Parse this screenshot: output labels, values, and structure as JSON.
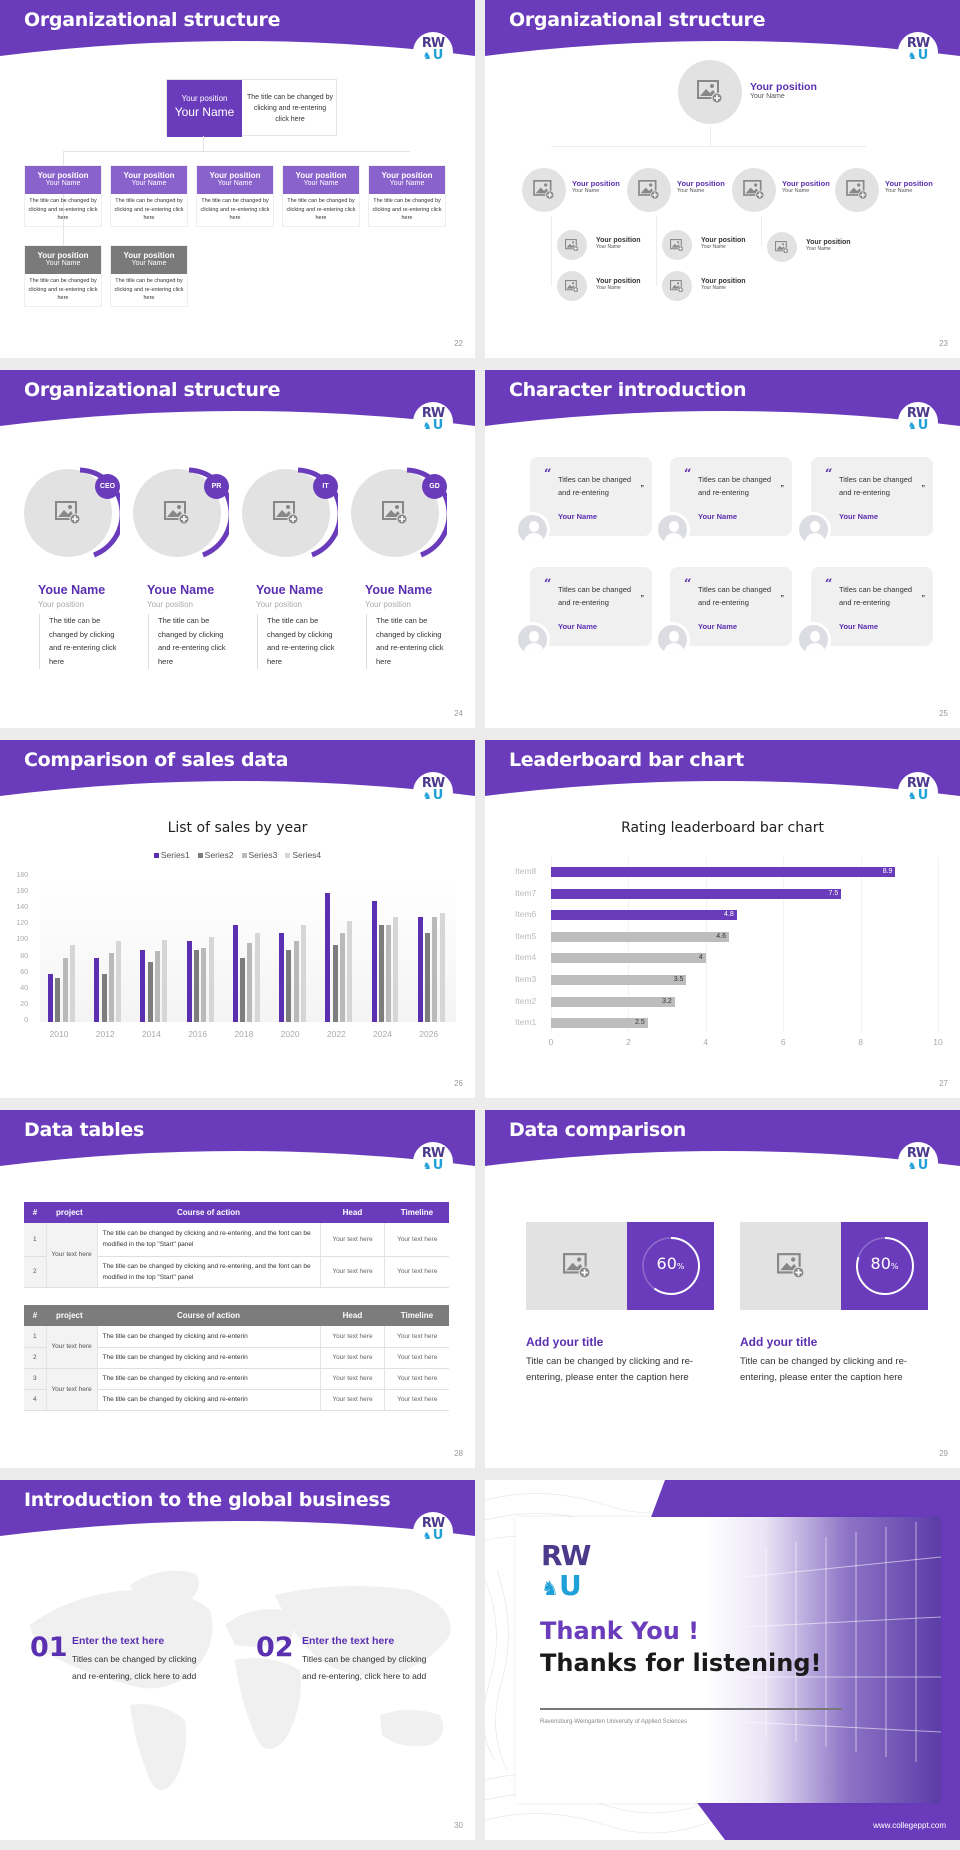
{
  "theme": {
    "accent": "#6a3cbc",
    "accent_light": "#8a62cc",
    "gray_header": "#7a7a7a",
    "placeholder": "#e3e2e2",
    "logo_dark": "#4b3a8c",
    "logo_blue": "#1fa0d8"
  },
  "logo": {
    "line1": "RW",
    "line2": "U",
    "lion": "♞"
  },
  "slides": {
    "s22": {
      "title": "Organizational structure",
      "page": "22",
      "top": {
        "position": "Your position",
        "name": "Your Name",
        "desc": "The title can be changed by clicking and re-entering click here"
      },
      "nodes": [
        {
          "position": "Your position",
          "name": "Your Name",
          "desc": "The title can be changed by clicking and re-entering click here",
          "color": "purple"
        },
        {
          "position": "Your position",
          "name": "Your Name",
          "desc": "The title can be changed by clicking and re-entering click here",
          "color": "purple"
        },
        {
          "position": "Your position",
          "name": "Your Name",
          "desc": "The title can be changed by clicking and re-entering click here",
          "color": "purple"
        },
        {
          "position": "Your position",
          "name": "Your Name",
          "desc": "The title can be changed by clicking and re-entering click here",
          "color": "purple"
        },
        {
          "position": "Your position",
          "name": "Your Name",
          "desc": "The title can be changed by clicking and re-entering click here",
          "color": "purple"
        },
        {
          "position": "Your position",
          "name": "Your Name",
          "desc": "The title can be changed by clicking and re-entering click here",
          "color": "gray"
        },
        {
          "position": "Your position",
          "name": "Your Name",
          "desc": "The title can be changed by clicking and re-entering click here",
          "color": "gray"
        }
      ]
    },
    "s23": {
      "title": "Organizational structure",
      "page": "23",
      "top": {
        "position": "Your position",
        "name": "Your Name"
      },
      "level1": [
        {
          "position": "Your position",
          "name": "Your Name"
        },
        {
          "position": "Your position",
          "name": "Your Name"
        },
        {
          "position": "Your position",
          "name": "Your Name"
        },
        {
          "position": "Your position",
          "name": "Your Name"
        }
      ],
      "level2": [
        {
          "position": "Your position",
          "name": "Your Name"
        },
        {
          "position": "Your position",
          "name": "Your Name"
        },
        {
          "position": "Your position",
          "name": "Your Name"
        },
        {
          "position": "Your position",
          "name": "Your Name"
        },
        {
          "position": "Your position",
          "name": "Your Name"
        }
      ]
    },
    "s24": {
      "title": "Organizational structure",
      "page": "24",
      "people": [
        {
          "badge": "CEO",
          "name": "Youe Name",
          "position": "Your position",
          "desc": "The title can be changed by clicking and re-entering click here"
        },
        {
          "badge": "PR",
          "name": "Youe Name",
          "position": "Your position",
          "desc": "The title can be changed by clicking and re-entering click here"
        },
        {
          "badge": "IT",
          "name": "Youe Name",
          "position": "Your position",
          "desc": "The title can be changed by clicking and re-entering click here"
        },
        {
          "badge": "GD",
          "name": "Youe Name",
          "position": "Your position",
          "desc": "The title can be changed by clicking and re-entering click here"
        }
      ]
    },
    "s25": {
      "title": "Character introduction",
      "page": "25",
      "quote_open": "“",
      "quote_close": "”",
      "cards": [
        {
          "text": "Titles can be changed and re-entering",
          "name": "Your Name"
        },
        {
          "text": "Titles can be changed and re-entering",
          "name": "Your Name"
        },
        {
          "text": "Titles can be changed and re-entering",
          "name": "Your Name"
        },
        {
          "text": "Titles can be changed and re-entering",
          "name": "Your Name"
        },
        {
          "text": "Titles can be changed and re-entering",
          "name": "Your Name"
        },
        {
          "text": "Titles can be changed and re-entering",
          "name": "Your Name"
        }
      ]
    },
    "s26": {
      "title": "Comparison of sales data",
      "page": "26"
    },
    "s27": {
      "title": "Leaderboard bar chart",
      "page": "27"
    },
    "s28": {
      "title": "Data tables",
      "page": "28",
      "headers": [
        "#",
        "project",
        "Course of action",
        "Head",
        "Timeline"
      ],
      "table1": {
        "project": "Your text here",
        "rows": [
          {
            "num": "1",
            "course": "The title can be changed by clicking and re-entering, and the font can be modified in the top \"Start\" panel",
            "head": "Your text here",
            "timeline": "Your text here"
          },
          {
            "num": "2",
            "course": "The title can be changed by clicking and re-entering, and the font can be modified in the top \"Start\" panel",
            "head": "Your text here",
            "timeline": "Your text here"
          }
        ]
      },
      "table2": {
        "projects": [
          "Your text here",
          "Your text here"
        ],
        "rows": [
          {
            "num": "1",
            "course": "The title can be changed by clicking and re-enterin",
            "head": "Your text here",
            "timeline": "Your text here"
          },
          {
            "num": "2",
            "course": "The title can be changed by clicking and re-enterin",
            "head": "Your text here",
            "timeline": "Your text here"
          },
          {
            "num": "3",
            "course": "The title can be changed by clicking and re-enterin",
            "head": "Your text here",
            "timeline": "Your text here"
          },
          {
            "num": "4",
            "course": "The title can be changed by clicking and re-enterin",
            "head": "Your text here",
            "timeline": "Your text here"
          }
        ]
      }
    },
    "s29": {
      "title": "Data comparison",
      "page": "29",
      "items": [
        {
          "value": "60",
          "unit": "%",
          "pct": 60,
          "heading": "Add your title",
          "text": "Title can be changed by clicking and re-entering, please enter the caption here"
        },
        {
          "value": "80",
          "unit": "%",
          "pct": 80,
          "heading": "Add your title",
          "text": "Title can be changed by clicking and re-entering, please enter the caption here"
        }
      ]
    },
    "s30": {
      "title": "Introduction to the global business",
      "page": "30",
      "items": [
        {
          "num": "01",
          "heading": "Enter the text here",
          "text": "Titles can be changed by clicking and re-entering, click here to add"
        },
        {
          "num": "02",
          "heading": "Enter the text here",
          "text": "Titles can be changed by clicking and re-entering, click here to add"
        }
      ]
    },
    "s31": {
      "thank_you": "Thank You !",
      "thanks_listening": "Thanks for listening!",
      "university": "Ravensburg-Weingarten University of Applied Sciences",
      "url": "www.collegeppt.com"
    }
  },
  "chart_data": [
    {
      "type": "bar",
      "title": "List of sales by year",
      "categories": [
        "2010",
        "2012",
        "2014",
        "2016",
        "2018",
        "2020",
        "2022",
        "2024",
        "2026"
      ],
      "series": [
        {
          "name": "Series1",
          "color": "#5a2fb0",
          "values": [
            60,
            80,
            90,
            100,
            120,
            110,
            160,
            150,
            130
          ]
        },
        {
          "name": "Series2",
          "color": "#7d7d7d",
          "values": [
            55,
            60,
            75,
            90,
            80,
            90,
            96,
            120,
            110
          ]
        },
        {
          "name": "Series3",
          "color": "#b9b9b9",
          "values": [
            80,
            86,
            88,
            92,
            98,
            100,
            110,
            120,
            130
          ]
        },
        {
          "name": "Series4",
          "color": "#d6d6d6",
          "values": [
            95,
            100,
            102,
            105,
            110,
            120,
            126,
            130,
            135
          ]
        }
      ],
      "xlabel": "",
      "ylabel": "",
      "ylim": [
        0,
        180
      ],
      "yticks": [
        0,
        20,
        40,
        60,
        80,
        100,
        120,
        140,
        160,
        180
      ],
      "legend_position": "top",
      "grid": false
    },
    {
      "type": "bar",
      "orientation": "horizontal",
      "title": "Rating leaderboard bar chart",
      "categories": [
        "Item8",
        "Item7",
        "Item6",
        "Item5",
        "Item4",
        "Item3",
        "Item2",
        "Item1"
      ],
      "values": [
        8.9,
        7.5,
        4.8,
        4.6,
        4,
        3.5,
        3.2,
        2.5
      ],
      "colors": [
        "#6a3cbc",
        "#6a3cbc",
        "#6a3cbc",
        "#bdbdbd",
        "#bdbdbd",
        "#bdbdbd",
        "#bdbdbd",
        "#bdbdbd"
      ],
      "xlim": [
        0,
        10
      ],
      "xticks": [
        0,
        2,
        4,
        6,
        8,
        10
      ],
      "data_labels": true,
      "grid": true
    }
  ]
}
